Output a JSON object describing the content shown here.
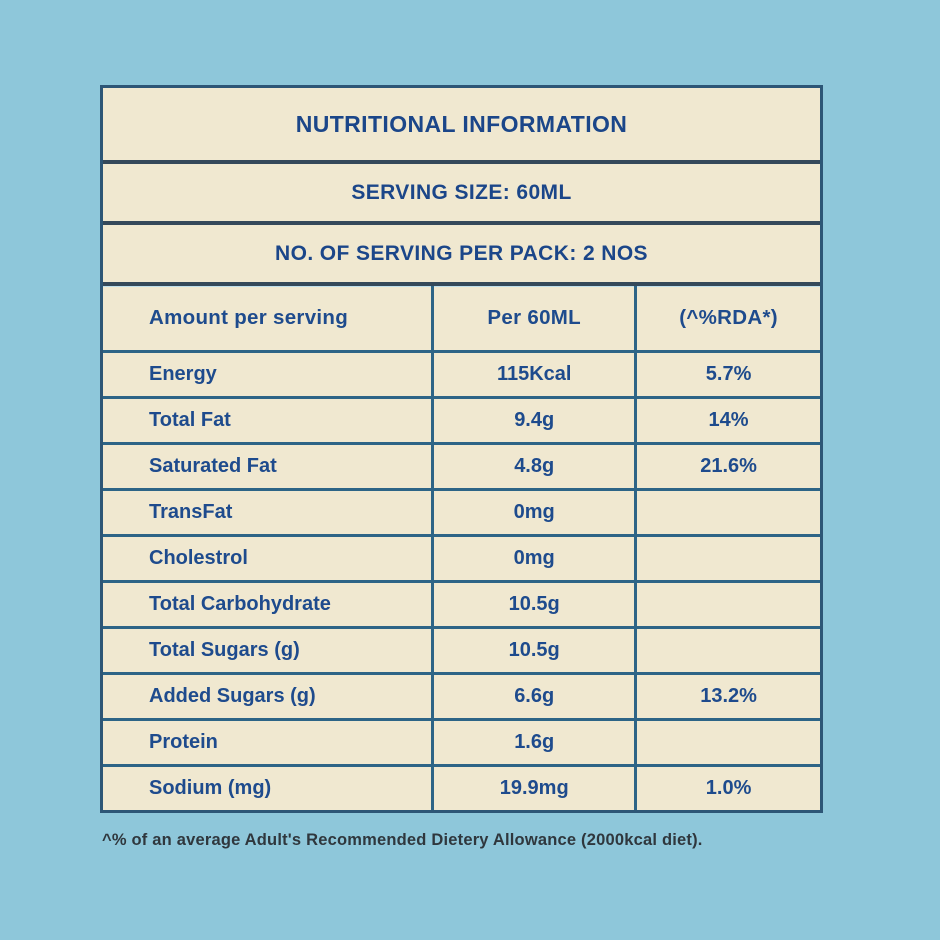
{
  "colors": {
    "background": "#8ec7da",
    "panel": "#f0e8d0",
    "grid_line": "#2d6486",
    "section_line": "#35495a",
    "heading_text": "#1b4689",
    "body_text": "#1e4b8d",
    "footnote_text": "#2f373d"
  },
  "label": {
    "title": "NUTRITIONAL INFORMATION",
    "serving_size": "SERVING SIZE: 60ML",
    "servings_per_pack": "NO. OF SERVING PER PACK: 2 NOS",
    "footnote": "^% of an average Adult's Recommended Dietery Allowance  (2000kcal diet)."
  },
  "table": {
    "headers": [
      "Amount per serving",
      "Per 60ML",
      "(^%RDA*)"
    ],
    "rows": [
      {
        "label": "Energy",
        "amount": "115Kcal",
        "rda": "5.7%"
      },
      {
        "label": "Total Fat",
        "amount": "9.4g",
        "rda": "14%"
      },
      {
        "label": "Saturated Fat",
        "amount": "4.8g",
        "rda": "21.6%"
      },
      {
        "label": "TransFat",
        "amount": "0mg",
        "rda": ""
      },
      {
        "label": "Cholestrol",
        "amount": "0mg",
        "rda": ""
      },
      {
        "label": "Total Carbohydrate",
        "amount": "10.5g",
        "rda": ""
      },
      {
        "label": "Total Sugars (g)",
        "amount": "10.5g",
        "rda": ""
      },
      {
        "label": "Added Sugars (g)",
        "amount": "6.6g",
        "rda": "13.2%"
      },
      {
        "label": "Protein",
        "amount": "1.6g",
        "rda": ""
      },
      {
        "label": "Sodium (mg)",
        "amount": "19.9mg",
        "rda": "1.0%"
      }
    ]
  }
}
